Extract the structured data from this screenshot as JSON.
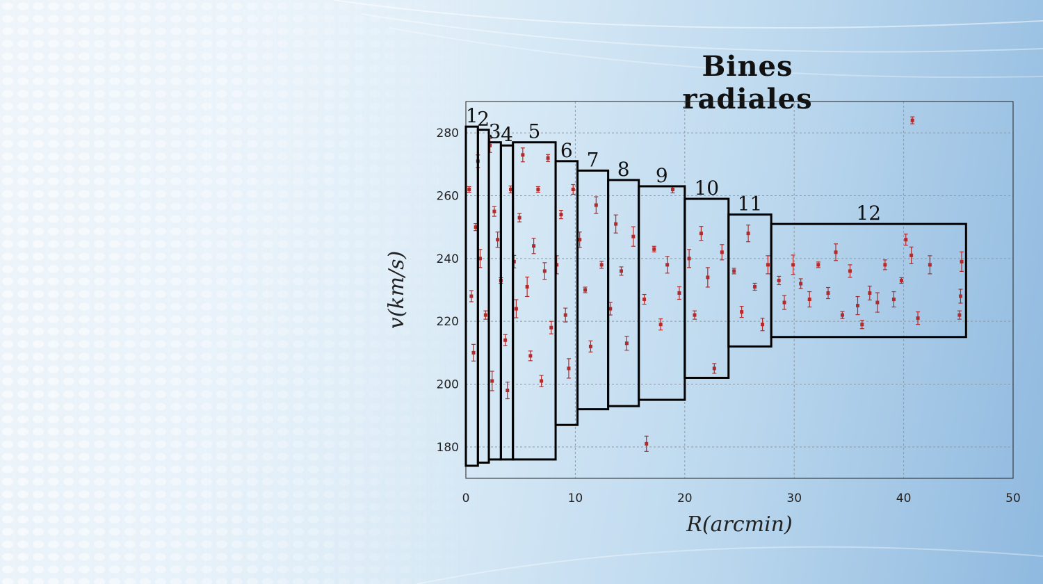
{
  "slide": {
    "title": "Bines radiales"
  },
  "chart_data": {
    "type": "scatter",
    "title": "",
    "xlabel": "R(arcmin)",
    "ylabel": "v(km/s)",
    "xlim": [
      0,
      50
    ],
    "ylim": [
      170,
      290
    ],
    "x_ticks": [
      0,
      10,
      20,
      30,
      40,
      50
    ],
    "y_ticks": [
      180,
      200,
      220,
      240,
      260,
      280
    ],
    "grid": true,
    "legend": "none",
    "marker_color": "#b22a2a",
    "box_color": "#000000",
    "series": [
      {
        "points": [
          [
            0.3,
            262
          ],
          [
            0.5,
            228
          ],
          [
            0.7,
            210
          ],
          [
            0.9,
            250
          ],
          [
            1.1,
            271
          ],
          [
            1.3,
            240
          ],
          [
            1.8,
            222
          ],
          [
            2.2,
            276
          ],
          [
            2.4,
            201
          ],
          [
            2.6,
            255
          ],
          [
            2.9,
            246
          ],
          [
            3.2,
            233
          ],
          [
            3.6,
            214
          ],
          [
            3.8,
            198
          ],
          [
            4.1,
            262
          ],
          [
            4.4,
            239
          ],
          [
            4.6,
            224
          ],
          [
            4.9,
            253
          ],
          [
            5.2,
            273
          ],
          [
            5.6,
            231
          ],
          [
            5.9,
            209
          ],
          [
            6.2,
            244
          ],
          [
            6.6,
            262
          ],
          [
            6.9,
            201
          ],
          [
            7.2,
            236
          ],
          [
            7.5,
            272
          ],
          [
            7.8,
            218
          ],
          [
            8.3,
            238
          ],
          [
            8.7,
            254
          ],
          [
            9.1,
            222
          ],
          [
            9.4,
            205
          ],
          [
            9.8,
            262
          ],
          [
            10.4,
            246
          ],
          [
            10.9,
            230
          ],
          [
            11.4,
            212
          ],
          [
            11.9,
            257
          ],
          [
            12.4,
            238
          ],
          [
            13.2,
            224
          ],
          [
            13.7,
            251
          ],
          [
            14.2,
            236
          ],
          [
            14.7,
            213
          ],
          [
            15.3,
            247
          ],
          [
            16.3,
            227
          ],
          [
            16.5,
            181
          ],
          [
            17.2,
            243
          ],
          [
            17.8,
            219
          ],
          [
            18.4,
            238
          ],
          [
            18.9,
            262
          ],
          [
            19.5,
            229
          ],
          [
            20.4,
            240
          ],
          [
            20.9,
            222
          ],
          [
            21.5,
            248
          ],
          [
            22.1,
            234
          ],
          [
            22.7,
            205
          ],
          [
            23.4,
            242
          ],
          [
            24.5,
            236
          ],
          [
            25.2,
            223
          ],
          [
            25.8,
            248
          ],
          [
            26.4,
            231
          ],
          [
            27.1,
            219
          ],
          [
            27.6,
            238
          ],
          [
            28.6,
            233
          ],
          [
            29.1,
            226
          ],
          [
            29.9,
            238
          ],
          [
            30.6,
            232
          ],
          [
            31.4,
            227
          ],
          [
            32.2,
            238
          ],
          [
            33.1,
            229
          ],
          [
            33.8,
            242
          ],
          [
            34.4,
            222
          ],
          [
            35.1,
            236
          ],
          [
            35.8,
            225
          ],
          [
            36.2,
            219
          ],
          [
            36.9,
            229
          ],
          [
            37.6,
            226
          ],
          [
            38.3,
            238
          ],
          [
            39.1,
            227
          ],
          [
            39.8,
            233
          ],
          [
            40.2,
            246
          ],
          [
            40.7,
            241
          ],
          [
            40.8,
            284
          ],
          [
            41.3,
            221
          ],
          [
            42.4,
            238
          ],
          [
            45.1,
            222
          ],
          [
            45.2,
            228
          ],
          [
            45.3,
            239
          ]
        ]
      }
    ],
    "bins": [
      {
        "label": "1",
        "x": [
          0.0,
          1.1
        ],
        "y": [
          174,
          282
        ]
      },
      {
        "label": "2",
        "x": [
          1.1,
          2.1
        ],
        "y": [
          175,
          281
        ]
      },
      {
        "label": "3",
        "x": [
          2.1,
          3.2
        ],
        "y": [
          176,
          277
        ]
      },
      {
        "label": "4",
        "x": [
          3.2,
          4.3
        ],
        "y": [
          176,
          276
        ]
      },
      {
        "label": "5",
        "x": [
          4.3,
          8.2
        ],
        "y": [
          176,
          277
        ]
      },
      {
        "label": "6",
        "x": [
          8.2,
          10.2
        ],
        "y": [
          187,
          271
        ]
      },
      {
        "label": "7",
        "x": [
          10.2,
          13.0
        ],
        "y": [
          192,
          268
        ]
      },
      {
        "label": "8",
        "x": [
          13.0,
          15.8
        ],
        "y": [
          193,
          265
        ]
      },
      {
        "label": "9",
        "x": [
          15.8,
          20.0
        ],
        "y": [
          195,
          263
        ]
      },
      {
        "label": "10",
        "x": [
          20.0,
          24.0
        ],
        "y": [
          202,
          259
        ]
      },
      {
        "label": "11",
        "x": [
          24.0,
          27.9
        ],
        "y": [
          212,
          254
        ]
      },
      {
        "label": "12",
        "x": [
          27.9,
          45.7
        ],
        "y": [
          215,
          251
        ]
      }
    ]
  }
}
